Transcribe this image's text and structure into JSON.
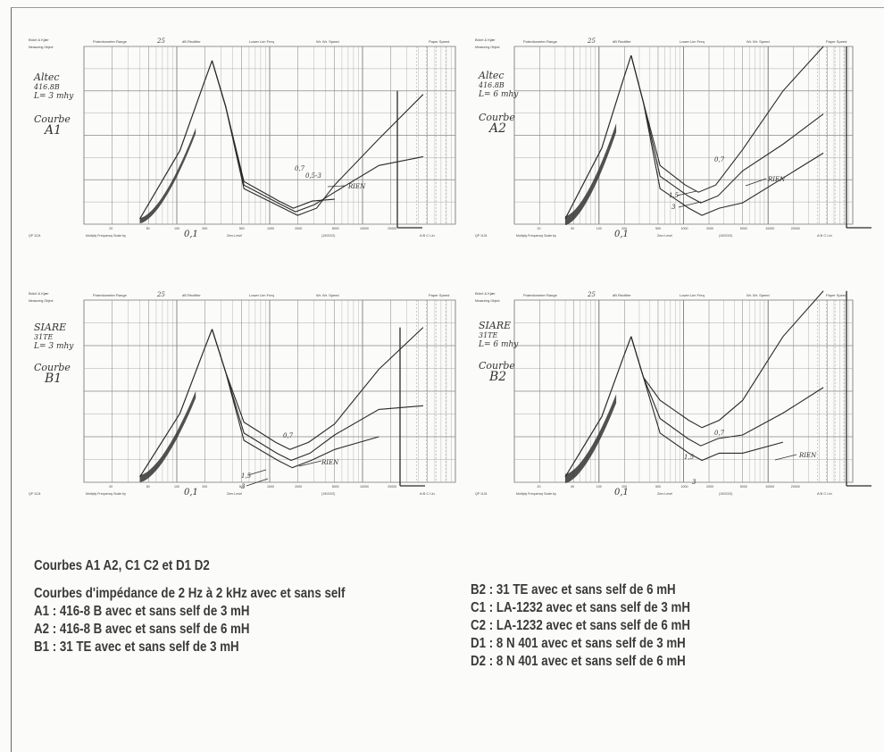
{
  "caption": {
    "title": "Courbes A1 A2, C1 C2 et D1 D2",
    "subtitle": "Courbes d'impédance de 2 Hz à 2 kHz avec et sans self",
    "lines_left": [
      "A1 : 416-8 B avec et sans self de 3 mH",
      "A2 : 416-8 B avec et sans self de 6 mH",
      "B1 : 31 TE avec et sans self de 3 mH"
    ],
    "lines_right": [
      "B2 : 31 TE avec et sans self de 6 mH",
      "C1 : LA-1232 avec et sans self de 3 mH",
      "C2 : LA-1232 avec et sans self de 6 mH",
      "D1 : 8 N 401 avec et sans self de 3 mH",
      "D2 : 8 N 401 avec et sans self de 6 mH"
    ]
  },
  "header_labels": {
    "brand": "Brüel & Kjær",
    "measuring": "Measuring Object",
    "range_label": "Potentiometer Range",
    "range_value": "25",
    "db_label": "dB Rectifier",
    "lowlim": "Lower Lim Freq",
    "wrspeed": "Wr. Wr. Speed",
    "paper": "Paper Speed",
    "scale": "Multiply Frequency Scale by",
    "zero": "Zero Level",
    "ref": "(19/2/2/2)",
    "abc": "A B C Lin"
  },
  "charts": [
    {
      "id": "A1",
      "hand_label": [
        "Altec",
        "416.8B",
        "L= 3 mhy",
        "",
        "Courbe",
        "A1"
      ],
      "scale_note": "0,1",
      "annotations": [
        "0,7",
        "0,5-3",
        "RIEN"
      ]
    },
    {
      "id": "A2",
      "hand_label": [
        "Altec",
        "416.8B",
        "L= 6 mhy",
        "",
        "Courbe",
        "A2"
      ],
      "scale_note": "0,1",
      "annotations": [
        "0,7",
        "1,5",
        "3",
        "RIEN"
      ]
    },
    {
      "id": "B1",
      "hand_label": [
        "SIARE",
        "31TE",
        "L= 3 mhy",
        "",
        "Courbe",
        "B1"
      ],
      "scale_note": "0,1",
      "annotations": [
        "0,7",
        "1,5",
        "3",
        "RIEN"
      ]
    },
    {
      "id": "B2",
      "hand_label": [
        "SIARE",
        "31TE",
        "L= 6 mhy",
        "",
        "Courbe",
        "B2"
      ],
      "scale_note": "0,1",
      "annotations": [
        "0,7",
        "1,5",
        "3",
        "RIEN"
      ]
    }
  ],
  "freq_ticks": [
    "20",
    "50",
    "100",
    "200",
    "500",
    "1000",
    "2000",
    "5000",
    "10000",
    "20000"
  ],
  "colors": {
    "ink": "#2a2a2a",
    "grid": "#8a8a8a",
    "paper": "#fbfbf9"
  }
}
